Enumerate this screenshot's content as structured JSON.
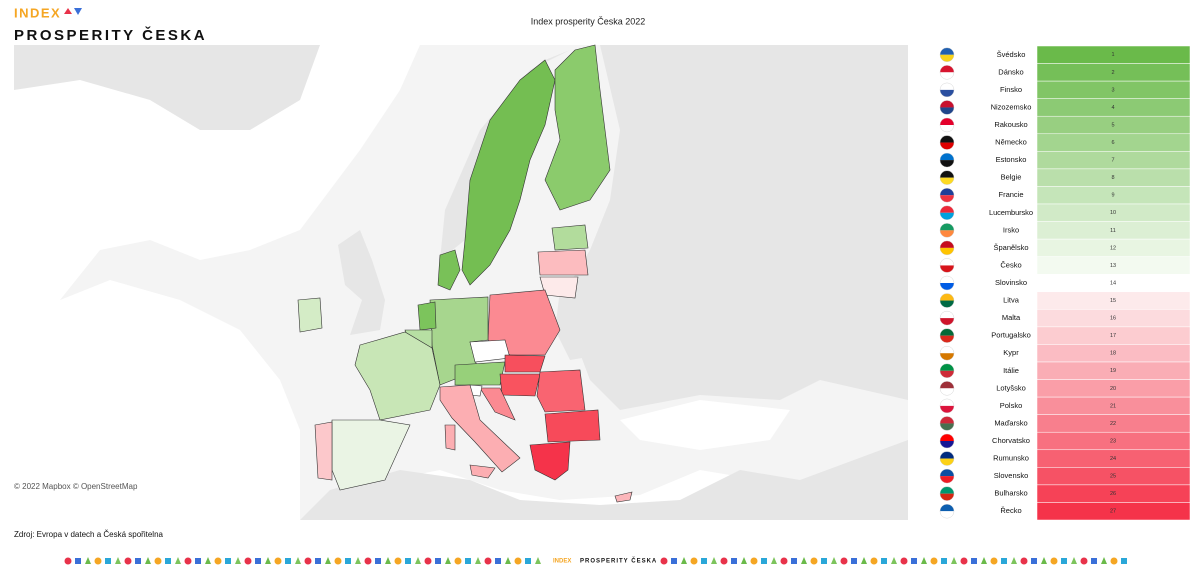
{
  "header": {
    "logo_index": "INDEX",
    "logo_name": "PROSPERITY ČESKA",
    "title": "Index prosperity Česka 2022"
  },
  "map": {
    "attribution": "© 2022 Mapbox © OpenStreetMap"
  },
  "ranking": {
    "rows": [
      {
        "country": "Švédsko",
        "rank": 1
      },
      {
        "country": "Dánsko",
        "rank": 2
      },
      {
        "country": "Finsko",
        "rank": 3
      },
      {
        "country": "Nizozemsko",
        "rank": 4
      },
      {
        "country": "Rakousko",
        "rank": 5
      },
      {
        "country": "Německo",
        "rank": 6
      },
      {
        "country": "Estonsko",
        "rank": 7
      },
      {
        "country": "Belgie",
        "rank": 8
      },
      {
        "country": "Francie",
        "rank": 9
      },
      {
        "country": "Lucembursko",
        "rank": 10
      },
      {
        "country": "Irsko",
        "rank": 11
      },
      {
        "country": "Španělsko",
        "rank": 12
      },
      {
        "country": "Česko",
        "rank": 13
      },
      {
        "country": "Slovinsko",
        "rank": 14
      },
      {
        "country": "Litva",
        "rank": 15
      },
      {
        "country": "Malta",
        "rank": 16
      },
      {
        "country": "Portugalsko",
        "rank": 17
      },
      {
        "country": "Kypr",
        "rank": 18
      },
      {
        "country": "Itálie",
        "rank": 19
      },
      {
        "country": "Lotyšsko",
        "rank": 20
      },
      {
        "country": "Polsko",
        "rank": 21
      },
      {
        "country": "Maďarsko",
        "rank": 22
      },
      {
        "country": "Chorvatsko",
        "rank": 23
      },
      {
        "country": "Rumunsko",
        "rank": 24
      },
      {
        "country": "Slovensko",
        "rank": 25
      },
      {
        "country": "Bulharsko",
        "rank": 26
      },
      {
        "country": "Řecko",
        "rank": 27
      }
    ]
  },
  "footer": {
    "source": "Zdroj: Evropa v datech a Česká spořitelna",
    "logo_index": "INDEX",
    "logo_name": "PROSPERITY ČESKA"
  }
}
